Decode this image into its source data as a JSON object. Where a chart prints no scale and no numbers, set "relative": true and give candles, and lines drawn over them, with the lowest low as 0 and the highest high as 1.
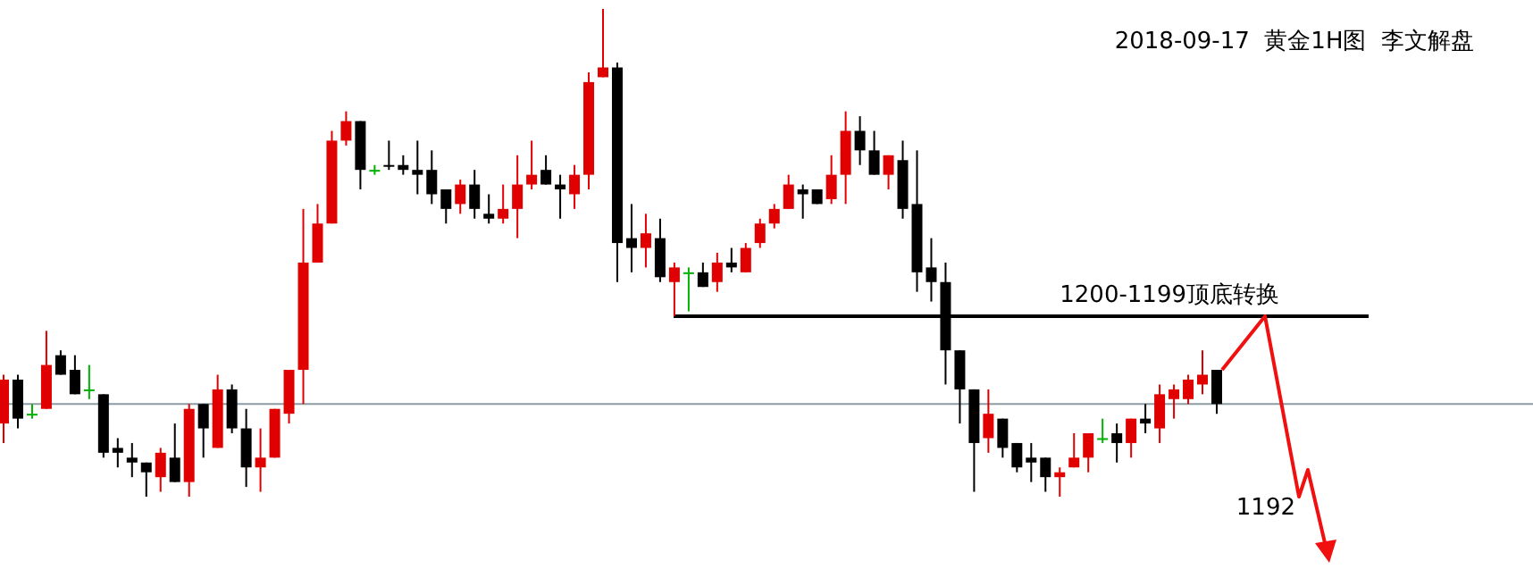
{
  "chart_data": {
    "type": "candlestick",
    "title": "2018-09-17  黄金1H图  李文解盘",
    "relative": true,
    "categories": [
      null,
      null,
      null,
      null,
      null,
      null,
      null,
      null,
      null,
      null,
      null,
      null,
      null,
      null,
      null,
      null,
      null,
      null,
      null,
      null,
      null,
      null,
      null,
      null,
      null,
      null,
      null,
      null,
      null,
      null,
      null,
      null,
      null,
      null,
      null,
      null,
      null,
      null,
      null,
      null,
      null,
      null,
      null,
      null,
      null,
      null,
      null,
      null,
      null,
      null,
      null,
      null,
      null,
      null,
      null,
      null,
      null,
      null,
      null,
      null,
      null,
      null,
      null,
      null,
      null,
      null,
      null,
      null,
      null,
      null,
      null,
      null,
      null,
      null,
      null,
      null,
      null,
      null,
      null,
      null,
      null,
      null,
      null,
      null,
      null,
      null
    ],
    "ohlc": [
      [
        0.15,
        0.25,
        0.11,
        0.24
      ],
      [
        0.24,
        0.25,
        0.14,
        0.16
      ],
      [
        0.17,
        0.19,
        0.16,
        0.17
      ],
      [
        0.18,
        0.34,
        0.18,
        0.27
      ],
      [
        0.29,
        0.3,
        0.25,
        0.25
      ],
      [
        0.26,
        0.29,
        0.21,
        0.21
      ],
      [
        0.22,
        0.27,
        0.2,
        0.22
      ],
      [
        0.21,
        0.21,
        0.08,
        0.09
      ],
      [
        0.1,
        0.12,
        0.06,
        0.09
      ],
      [
        0.08,
        0.11,
        0.04,
        0.07
      ],
      [
        0.07,
        0.07,
        0,
        0.05
      ],
      [
        0.04,
        0.1,
        0.01,
        0.09
      ],
      [
        0.08,
        0.15,
        0.03,
        0.03
      ],
      [
        0.03,
        0.19,
        0,
        0.18
      ],
      [
        0.19,
        0.19,
        0.08,
        0.14
      ],
      [
        0.1,
        0.25,
        0.1,
        0.22
      ],
      [
        0.22,
        0.23,
        0.13,
        0.14
      ],
      [
        0.14,
        0.18,
        0.02,
        0.06
      ],
      [
        0.06,
        0.14,
        0.01,
        0.08
      ],
      [
        0.08,
        0.18,
        0.08,
        0.18
      ],
      [
        0.17,
        0.26,
        0.15,
        0.26
      ],
      [
        0.26,
        0.59,
        0.19,
        0.48
      ],
      [
        0.48,
        0.6,
        0.48,
        0.56
      ],
      [
        0.56,
        0.75,
        0.56,
        0.73
      ],
      [
        0.73,
        0.79,
        0.72,
        0.77
      ],
      [
        0.77,
        0.77,
        0.63,
        0.67
      ],
      [
        0.67,
        0.68,
        0.66,
        0.67
      ],
      [
        0.68,
        0.73,
        0.67,
        0.68
      ],
      [
        0.68,
        0.7,
        0.66,
        0.67
      ],
      [
        0.67,
        0.73,
        0.62,
        0.66
      ],
      [
        0.67,
        0.71,
        0.6,
        0.62
      ],
      [
        0.63,
        0.63,
        0.56,
        0.59
      ],
      [
        0.6,
        0.65,
        0.58,
        0.64
      ],
      [
        0.64,
        0.67,
        0.57,
        0.59
      ],
      [
        0.58,
        0.62,
        0.56,
        0.57
      ],
      [
        0.57,
        0.64,
        0.56,
        0.59
      ],
      [
        0.59,
        0.7,
        0.53,
        0.64
      ],
      [
        0.64,
        0.73,
        0.63,
        0.66
      ],
      [
        0.67,
        0.7,
        0.64,
        0.64
      ],
      [
        0.64,
        0.66,
        0.57,
        0.63
      ],
      [
        0.62,
        0.68,
        0.59,
        0.66
      ],
      [
        0.66,
        0.87,
        0.63,
        0.85
      ],
      [
        0.86,
        1,
        0.86,
        0.88
      ],
      [
        0.88,
        0.89,
        0.44,
        0.52
      ],
      [
        0.53,
        0.6,
        0.46,
        0.51
      ],
      [
        0.51,
        0.58,
        0.47,
        0.54
      ],
      [
        0.53,
        0.57,
        0.44,
        0.45
      ],
      [
        0.44,
        0.48,
        0.37,
        0.47
      ],
      [
        0.46,
        0.47,
        0.38,
        0.46
      ],
      [
        0.46,
        0.48,
        0.43,
        0.43
      ],
      [
        0.44,
        0.5,
        0.42,
        0.48
      ],
      [
        0.48,
        0.51,
        0.46,
        0.47
      ],
      [
        0.46,
        0.52,
        0.46,
        0.51
      ],
      [
        0.52,
        0.57,
        0.51,
        0.56
      ],
      [
        0.56,
        0.6,
        0.55,
        0.59
      ],
      [
        0.59,
        0.66,
        0.59,
        0.64
      ],
      [
        0.63,
        0.64,
        0.57,
        0.62
      ],
      [
        0.63,
        0.63,
        0.6,
        0.6
      ],
      [
        0.61,
        0.7,
        0.6,
        0.66
      ],
      [
        0.66,
        0.79,
        0.6,
        0.75
      ],
      [
        0.75,
        0.78,
        0.68,
        0.71
      ],
      [
        0.71,
        0.75,
        0.66,
        0.66
      ],
      [
        0.66,
        0.7,
        0.63,
        0.7
      ],
      [
        0.69,
        0.73,
        0.57,
        0.59
      ],
      [
        0.6,
        0.71,
        0.42,
        0.46
      ],
      [
        0.47,
        0.53,
        0.4,
        0.44
      ],
      [
        0.44,
        0.48,
        0.23,
        0.3
      ],
      [
        0.3,
        0.3,
        0.15,
        0.22
      ],
      [
        0.22,
        0.22,
        0.01,
        0.11
      ],
      [
        0.12,
        0.22,
        0.09,
        0.17
      ],
      [
        0.16,
        0.16,
        0.08,
        0.1
      ],
      [
        0.11,
        0.11,
        0.05,
        0.06
      ],
      [
        0.08,
        0.11,
        0.03,
        0.07
      ],
      [
        0.08,
        0.08,
        0.01,
        0.04
      ],
      [
        0.04,
        0.06,
        0,
        0.05
      ],
      [
        0.06,
        0.13,
        0.06,
        0.08
      ],
      [
        0.08,
        0.13,
        0.05,
        0.13
      ],
      [
        0.12,
        0.16,
        0.11,
        0.12
      ],
      [
        0.13,
        0.15,
        0.07,
        0.11
      ],
      [
        0.11,
        0.16,
        0.08,
        0.16
      ],
      [
        0.16,
        0.19,
        0.13,
        0.15
      ],
      [
        0.14,
        0.23,
        0.11,
        0.21
      ],
      [
        0.2,
        0.23,
        0.16,
        0.22
      ],
      [
        0.2,
        0.25,
        0.19,
        0.24
      ],
      [
        0.23,
        0.3,
        0.21,
        0.25
      ],
      [
        0.26,
        0.26,
        0.17,
        0.19
      ]
    ],
    "colors": [
      "#e00000",
      "#000000",
      "#00b000",
      "#e00000",
      "#000000",
      "#000000",
      "#00b000",
      "#000000",
      "#000000",
      "#000000",
      "#000000",
      "#e00000",
      "#000000",
      "#e00000",
      "#000000",
      "#e00000",
      "#000000",
      "#000000",
      "#e00000",
      "#e00000",
      "#e00000",
      "#e00000",
      "#e00000",
      "#e00000",
      "#e00000",
      "#000000",
      "#00b000",
      "#000000",
      "#000000",
      "#000000",
      "#000000",
      "#000000",
      "#e00000",
      "#000000",
      "#000000",
      "#e00000",
      "#e00000",
      "#e00000",
      "#000000",
      "#000000",
      "#e00000",
      "#e00000",
      "#e00000",
      "#000000",
      "#000000",
      "#e00000",
      "#000000",
      "#e00000",
      "#00b000",
      "#000000",
      "#e00000",
      "#000000",
      "#e00000",
      "#e00000",
      "#e00000",
      "#e00000",
      "#000000",
      "#000000",
      "#e00000",
      "#e00000",
      "#000000",
      "#000000",
      "#e00000",
      "#000000",
      "#000000",
      "#000000",
      "#000000",
      "#000000",
      "#000000",
      "#e00000",
      "#000000",
      "#000000",
      "#000000",
      "#000000",
      "#e00000",
      "#e00000",
      "#e00000",
      "#00b000",
      "#000000",
      "#e00000",
      "#000000",
      "#e00000",
      "#e00000",
      "#e00000",
      "#e00000",
      "#000000"
    ],
    "ref_lines": [
      {
        "axis": "y",
        "value": 0.19,
        "color": "#8c9ca4"
      },
      {
        "axis": "y",
        "value": 0.37,
        "label": "1200-1199顶底转换",
        "color": "#000000"
      }
    ],
    "annotations": [
      "1192"
    ]
  }
}
